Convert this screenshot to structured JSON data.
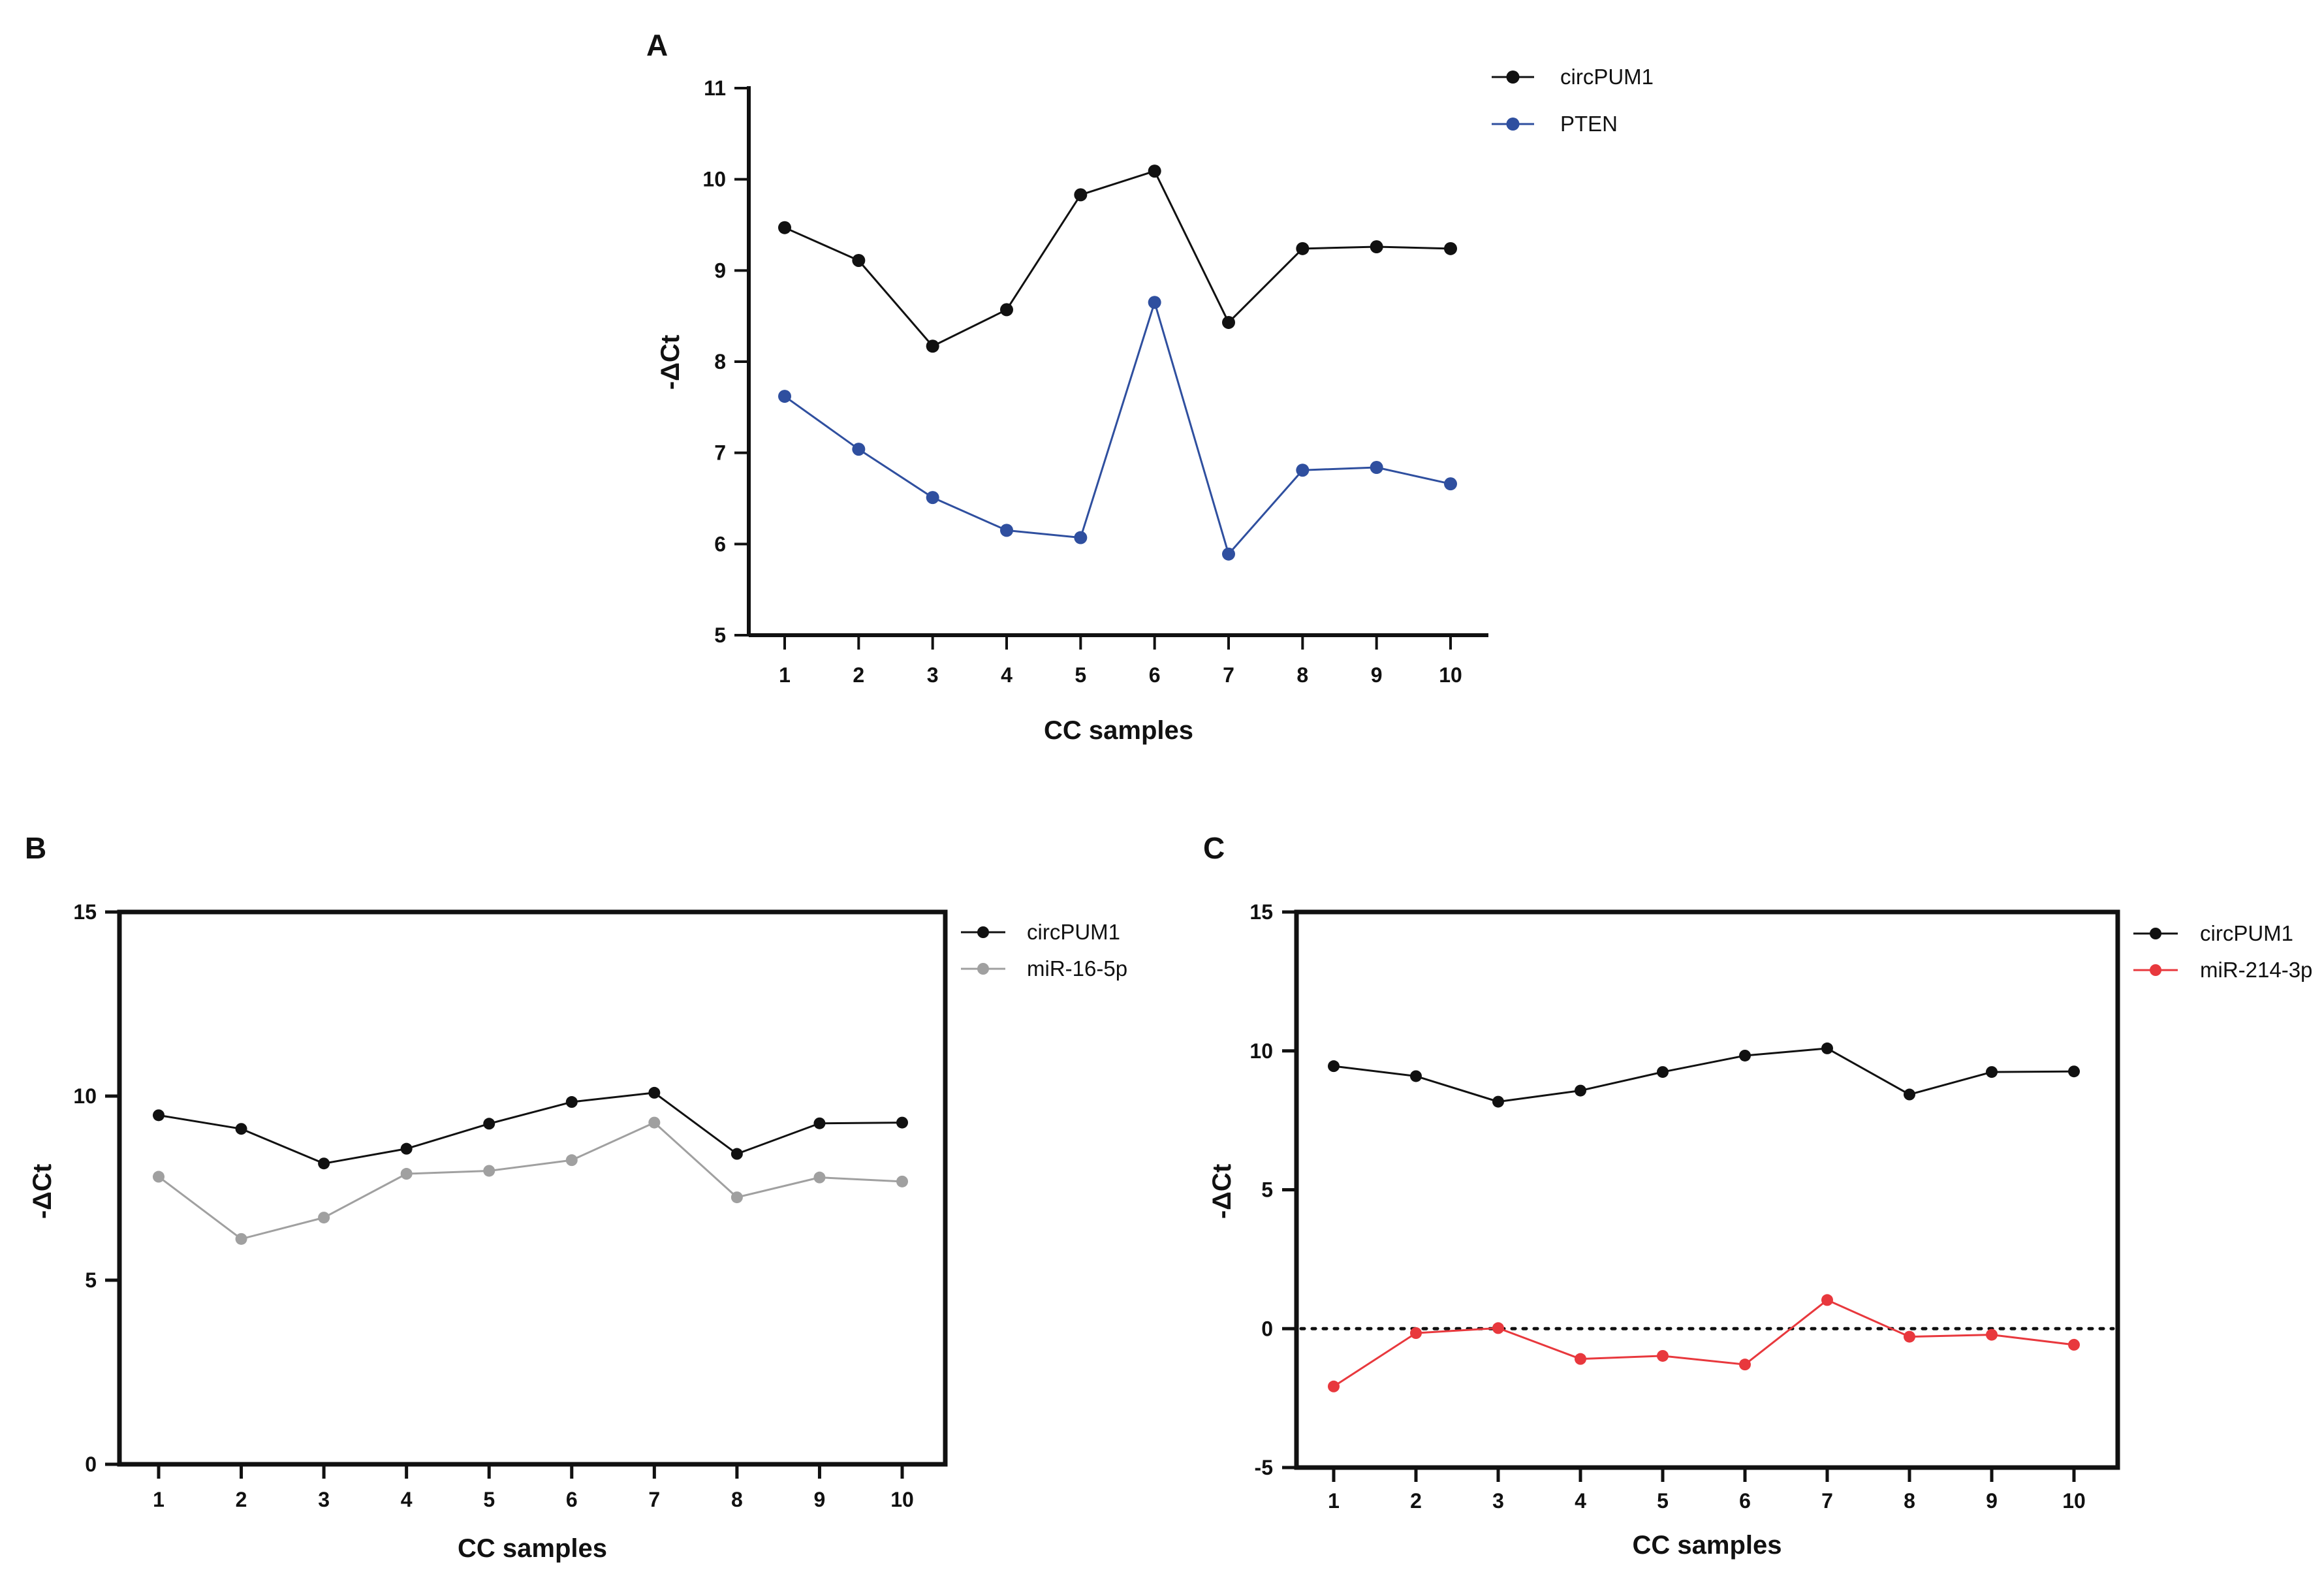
{
  "figure_labels": [
    "A",
    "B",
    "C"
  ],
  "chart_data": [
    {
      "type": "line",
      "panel": "A",
      "title": "",
      "xlabel": "CC samples",
      "ylabel": "-ΔCt",
      "categories": [
        "1",
        "2",
        "3",
        "4",
        "5",
        "6",
        "7",
        "8",
        "9",
        "10"
      ],
      "ylim": [
        5,
        11
      ],
      "yticks": [
        5,
        6,
        7,
        8,
        9,
        10,
        11
      ],
      "frame": "open",
      "grid": false,
      "legend_position": "top-right",
      "series": [
        {
          "name": "circPUM1",
          "color": "#111111",
          "values": [
            9.47,
            9.11,
            8.17,
            8.57,
            9.83,
            10.09,
            8.43,
            9.24,
            9.26,
            9.24
          ]
        },
        {
          "name": "PTEN",
          "color": "#2f4f9f",
          "values": [
            7.62,
            7.04,
            6.51,
            6.15,
            6.07,
            8.65,
            5.89,
            6.81,
            6.84,
            6.66
          ]
        }
      ]
    },
    {
      "type": "line",
      "panel": "B",
      "title": "",
      "xlabel": "CC samples",
      "ylabel": "-ΔCt",
      "categories": [
        "1",
        "2",
        "3",
        "4",
        "5",
        "6",
        "7",
        "8",
        "9",
        "10"
      ],
      "ylim": [
        0,
        15
      ],
      "yticks": [
        0,
        5,
        10,
        15
      ],
      "frame": "box",
      "grid": false,
      "legend_position": "top-right",
      "series": [
        {
          "name": "circPUM1",
          "color": "#111111",
          "values": [
            9.48,
            9.11,
            8.17,
            8.57,
            9.25,
            9.84,
            10.09,
            8.43,
            9.26,
            9.28
          ]
        },
        {
          "name": "miR-16-5p",
          "color": "#a0a0a0",
          "values": [
            7.81,
            6.12,
            6.7,
            7.89,
            7.97,
            8.26,
            9.28,
            7.25,
            7.79,
            7.68
          ]
        }
      ]
    },
    {
      "type": "line",
      "panel": "C",
      "title": "",
      "xlabel": "CC samples",
      "ylabel": "-ΔCt",
      "categories": [
        "1",
        "2",
        "3",
        "4",
        "5",
        "6",
        "7",
        "8",
        "9",
        "10"
      ],
      "ylim": [
        -5,
        15
      ],
      "yticks": [
        -5,
        0,
        5,
        10,
        15
      ],
      "frame": "box",
      "grid": false,
      "reference_line": {
        "y": 0,
        "style": "dotted"
      },
      "legend_position": "top-right",
      "series": [
        {
          "name": "circPUM1",
          "color": "#111111",
          "values": [
            9.45,
            9.09,
            8.17,
            8.57,
            9.24,
            9.83,
            10.09,
            8.43,
            9.24,
            9.26
          ]
        },
        {
          "name": "miR-214-3p",
          "color": "#e8383d",
          "values": [
            -2.08,
            -0.16,
            0.02,
            -1.09,
            -0.98,
            -1.29,
            1.03,
            -0.29,
            -0.22,
            -0.58
          ]
        }
      ]
    }
  ]
}
